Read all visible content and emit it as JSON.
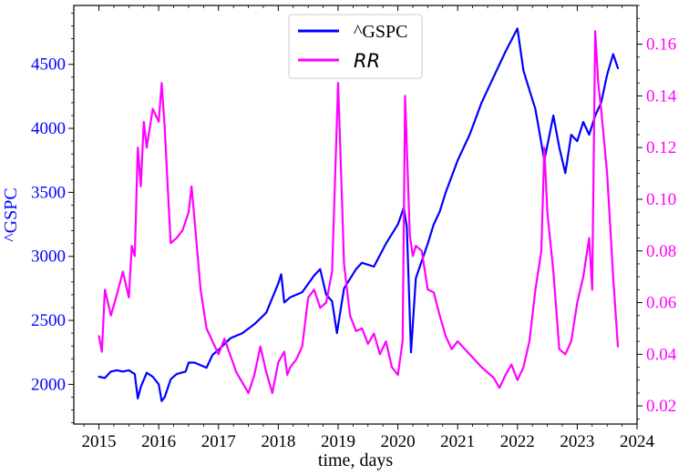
{
  "chart_data": {
    "type": "line",
    "xlabel": "time, days",
    "ylabel_left": "^GSPC",
    "ylabel_right": "",
    "x_ticks": [
      "2015",
      "2016",
      "2017",
      "2018",
      "2019",
      "2020",
      "2021",
      "2022",
      "2023",
      "2024"
    ],
    "x_range": [
      2014.58,
      2024.0
    ],
    "y_left_ticks": [
      "2000",
      "2500",
      "3000",
      "3500",
      "4000",
      "4500"
    ],
    "y_left_range": [
      1690,
      4960
    ],
    "y_right_ticks": [
      "0.02",
      "0.04",
      "0.06",
      "0.08",
      "0.10",
      "0.12",
      "0.14",
      "0.16"
    ],
    "y_right_range": [
      0.013,
      0.175
    ],
    "legend": {
      "position": "top-center",
      "entries": [
        "^GSPC",
        "RR"
      ]
    },
    "colors": {
      "left_series": "#0000ff",
      "right_series": "#ff00ff",
      "left_axis": "#0000ff",
      "right_axis": "#ff00ff"
    },
    "grid": false,
    "series": [
      {
        "name": "^GSPC",
        "axis": "left",
        "color": "#0000ff",
        "x": [
          2015.0,
          2015.1,
          2015.2,
          2015.3,
          2015.4,
          2015.5,
          2015.6,
          2015.65,
          2015.7,
          2015.8,
          2015.9,
          2016.0,
          2016.05,
          2016.1,
          2016.2,
          2016.3,
          2016.45,
          2016.5,
          2016.6,
          2016.8,
          2016.9,
          2017.0,
          2017.2,
          2017.4,
          2017.6,
          2017.8,
          2018.0,
          2018.05,
          2018.1,
          2018.2,
          2018.4,
          2018.6,
          2018.7,
          2018.8,
          2018.9,
          2018.98,
          2019.1,
          2019.3,
          2019.4,
          2019.6,
          2019.8,
          2020.0,
          2020.1,
          2020.15,
          2020.22,
          2020.3,
          2020.5,
          2020.6,
          2020.7,
          2020.8,
          2021.0,
          2021.2,
          2021.4,
          2021.6,
          2021.8,
          2022.0,
          2022.1,
          2022.2,
          2022.3,
          2022.45,
          2022.6,
          2022.7,
          2022.8,
          2022.9,
          2023.0,
          2023.1,
          2023.2,
          2023.3,
          2023.4,
          2023.5,
          2023.6,
          2023.68
        ],
        "values": [
          2060,
          2050,
          2100,
          2110,
          2100,
          2110,
          2080,
          1890,
          1980,
          2090,
          2060,
          2000,
          1870,
          1900,
          2040,
          2080,
          2100,
          2170,
          2170,
          2130,
          2230,
          2270,
          2360,
          2400,
          2470,
          2560,
          2790,
          2860,
          2640,
          2680,
          2720,
          2850,
          2900,
          2700,
          2650,
          2400,
          2750,
          2900,
          2950,
          2920,
          3100,
          3250,
          3380,
          3230,
          2250,
          2830,
          3100,
          3250,
          3350,
          3500,
          3750,
          3950,
          4200,
          4400,
          4600,
          4780,
          4450,
          4300,
          4150,
          3750,
          4100,
          3850,
          3650,
          3950,
          3900,
          4050,
          3950,
          4100,
          4200,
          4420,
          4580,
          4470
        ]
      },
      {
        "name": "RR",
        "axis": "right",
        "color": "#ff00ff",
        "x": [
          2015.0,
          2015.05,
          2015.1,
          2015.2,
          2015.3,
          2015.4,
          2015.5,
          2015.55,
          2015.6,
          2015.65,
          2015.7,
          2015.75,
          2015.8,
          2015.9,
          2016.0,
          2016.05,
          2016.1,
          2016.15,
          2016.2,
          2016.3,
          2016.4,
          2016.5,
          2016.55,
          2016.6,
          2016.7,
          2016.8,
          2016.9,
          2017.0,
          2017.1,
          2017.3,
          2017.5,
          2017.6,
          2017.7,
          2017.8,
          2017.9,
          2018.0,
          2018.1,
          2018.15,
          2018.2,
          2018.3,
          2018.4,
          2018.5,
          2018.6,
          2018.7,
          2018.8,
          2018.9,
          2019.0,
          2019.05,
          2019.1,
          2019.2,
          2019.3,
          2019.4,
          2019.5,
          2019.6,
          2019.7,
          2019.8,
          2019.9,
          2020.0,
          2020.08,
          2020.12,
          2020.2,
          2020.25,
          2020.3,
          2020.4,
          2020.5,
          2020.6,
          2020.7,
          2020.8,
          2020.9,
          2021.0,
          2021.2,
          2021.4,
          2021.6,
          2021.7,
          2021.8,
          2021.9,
          2022.0,
          2022.1,
          2022.2,
          2022.3,
          2022.4,
          2022.45,
          2022.5,
          2022.6,
          2022.7,
          2022.8,
          2022.9,
          2023.0,
          2023.1,
          2023.2,
          2023.25,
          2023.3,
          2023.35,
          2023.4,
          2023.5,
          2023.6,
          2023.68
        ],
        "values": [
          0.047,
          0.041,
          0.065,
          0.055,
          0.063,
          0.072,
          0.062,
          0.082,
          0.078,
          0.12,
          0.105,
          0.13,
          0.12,
          0.135,
          0.13,
          0.145,
          0.128,
          0.105,
          0.083,
          0.085,
          0.088,
          0.095,
          0.105,
          0.092,
          0.065,
          0.05,
          0.045,
          0.04,
          0.046,
          0.033,
          0.025,
          0.032,
          0.043,
          0.033,
          0.025,
          0.037,
          0.041,
          0.032,
          0.035,
          0.038,
          0.043,
          0.062,
          0.065,
          0.058,
          0.06,
          0.072,
          0.145,
          0.11,
          0.075,
          0.055,
          0.049,
          0.05,
          0.044,
          0.048,
          0.04,
          0.045,
          0.035,
          0.032,
          0.045,
          0.14,
          0.086,
          0.078,
          0.082,
          0.08,
          0.065,
          0.064,
          0.055,
          0.047,
          0.042,
          0.045,
          0.04,
          0.035,
          0.031,
          0.027,
          0.032,
          0.036,
          0.03,
          0.035,
          0.045,
          0.065,
          0.08,
          0.12,
          0.095,
          0.072,
          0.042,
          0.04,
          0.045,
          0.06,
          0.07,
          0.085,
          0.065,
          0.165,
          0.145,
          0.135,
          0.11,
          0.07,
          0.043
        ]
      }
    ]
  }
}
